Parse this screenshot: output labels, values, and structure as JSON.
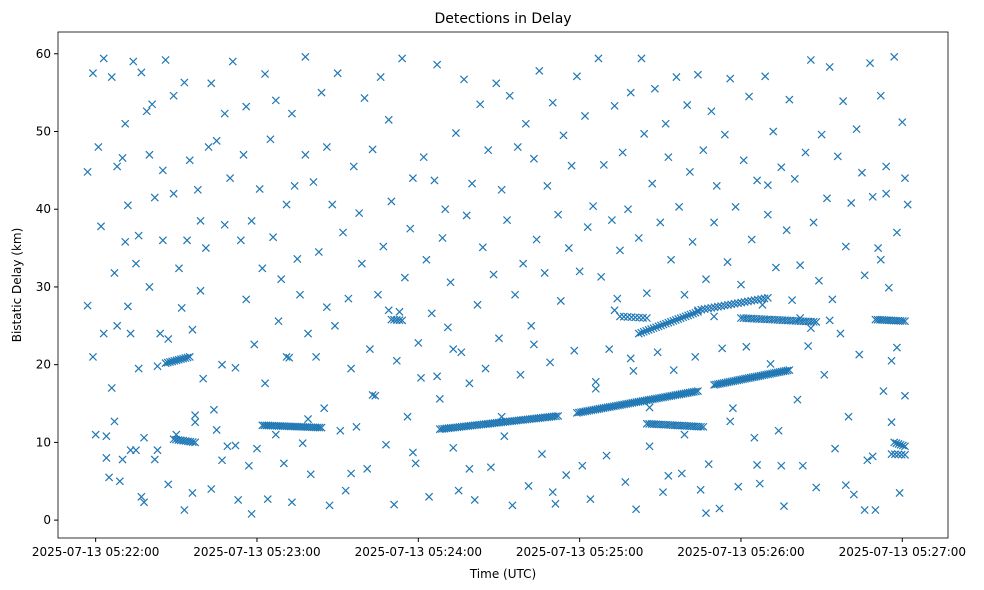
{
  "chart_data": {
    "type": "scatter",
    "title": "Detections in Delay",
    "xlabel": "Time (UTC)",
    "ylabel": "Bistatic Delay (km)",
    "x_units": "seconds after 2025-07-13 05:22:00",
    "xlim": [
      -14,
      317
    ],
    "ylim": [
      -2.3,
      62.8
    ],
    "grid": false,
    "marker": "x",
    "color": "#1f77b4",
    "x_ticks": [
      {
        "value": 0,
        "label": "2025-07-13 05:22:00"
      },
      {
        "value": 60,
        "label": "2025-07-13 05:23:00"
      },
      {
        "value": 120,
        "label": "2025-07-13 05:24:00"
      },
      {
        "value": 180,
        "label": "2025-07-13 05:25:00"
      },
      {
        "value": 240,
        "label": "2025-07-13 05:26:00"
      },
      {
        "value": 300,
        "label": "2025-07-13 05:27:00"
      }
    ],
    "y_ticks": [
      {
        "value": 0,
        "label": "0"
      },
      {
        "value": 10,
        "label": "10"
      },
      {
        "value": 20,
        "label": "20"
      },
      {
        "value": 30,
        "label": "30"
      },
      {
        "value": 40,
        "label": "40"
      },
      {
        "value": 50,
        "label": "50"
      },
      {
        "value": 60,
        "label": "60"
      }
    ],
    "tracks": [
      {
        "t0": 26,
        "t1": 35,
        "d0": 20.2,
        "d1": 21.0,
        "n": 12
      },
      {
        "t0": 29,
        "t1": 37,
        "d0": 10.4,
        "d1": 10.0,
        "n": 10
      },
      {
        "t0": 62,
        "t1": 84,
        "d0": 12.2,
        "d1": 11.9,
        "n": 30
      },
      {
        "t0": 128,
        "t1": 172,
        "d0": 11.7,
        "d1": 13.4,
        "n": 55
      },
      {
        "t0": 179,
        "t1": 224,
        "d0": 13.8,
        "d1": 16.6,
        "n": 60
      },
      {
        "t0": 230,
        "t1": 258,
        "d0": 17.4,
        "d1": 19.3,
        "n": 40
      },
      {
        "t0": 205,
        "t1": 226,
        "d0": 12.4,
        "d1": 12.0,
        "n": 25
      },
      {
        "t0": 202,
        "t1": 224,
        "d0": 24.0,
        "d1": 26.8,
        "n": 25
      },
      {
        "t0": 224,
        "t1": 250,
        "d0": 27.0,
        "d1": 28.6,
        "n": 22
      },
      {
        "t0": 240,
        "t1": 268,
        "d0": 26.0,
        "d1": 25.5,
        "n": 30
      },
      {
        "t0": 290,
        "t1": 301,
        "d0": 25.8,
        "d1": 25.6,
        "n": 14
      },
      {
        "t0": 195,
        "t1": 205,
        "d0": 26.2,
        "d1": 26.0,
        "n": 8
      },
      {
        "t0": 110,
        "t1": 114,
        "d0": 25.8,
        "d1": 25.7,
        "n": 5
      },
      {
        "t0": 297,
        "t1": 301,
        "d0": 10.0,
        "d1": 9.5,
        "n": 6
      },
      {
        "t0": 296,
        "t1": 301,
        "d0": 8.5,
        "d1": 8.4,
        "n": 5
      }
    ],
    "points": [
      [
        -3,
        44.8
      ],
      [
        -3,
        27.6
      ],
      [
        -1,
        21
      ],
      [
        -1,
        57.5
      ],
      [
        0,
        11
      ],
      [
        1,
        48
      ],
      [
        2,
        37.8
      ],
      [
        3,
        59.4
      ],
      [
        3,
        24
      ],
      [
        4,
        8
      ],
      [
        5,
        5.5
      ],
      [
        6,
        17
      ],
      [
        6,
        57
      ],
      [
        7,
        12.7
      ],
      [
        7,
        31.8
      ],
      [
        8,
        45.5
      ],
      [
        8,
        25
      ],
      [
        9,
        5
      ],
      [
        10,
        46.6
      ],
      [
        11,
        51
      ],
      [
        11,
        35.8
      ],
      [
        12,
        40.5
      ],
      [
        12,
        27.5
      ],
      [
        13,
        9
      ],
      [
        13,
        24
      ],
      [
        14,
        59
      ],
      [
        15,
        33
      ],
      [
        16,
        36.6
      ],
      [
        16,
        19.5
      ],
      [
        17,
        3
      ],
      [
        17,
        57.6
      ],
      [
        18,
        2.3
      ],
      [
        18,
        10.6
      ],
      [
        19,
        52.6
      ],
      [
        20,
        47
      ],
      [
        20,
        30
      ],
      [
        21,
        53.5
      ],
      [
        22,
        7.8
      ],
      [
        22,
        41.5
      ],
      [
        23,
        19.8
      ],
      [
        24,
        24
      ],
      [
        25,
        45
      ],
      [
        25,
        36
      ],
      [
        26,
        59.2
      ],
      [
        27,
        23.3
      ],
      [
        27,
        4.6
      ],
      [
        29,
        42
      ],
      [
        29,
        54.6
      ],
      [
        30,
        11
      ],
      [
        31,
        32.4
      ],
      [
        32,
        27.3
      ],
      [
        33,
        56.3
      ],
      [
        33,
        1.3
      ],
      [
        34,
        36
      ],
      [
        35,
        46.3
      ],
      [
        36,
        24.5
      ],
      [
        36,
        3.5
      ],
      [
        37,
        13.5
      ],
      [
        38,
        42.5
      ],
      [
        39,
        29.5
      ],
      [
        39,
        38.5
      ],
      [
        40,
        18.2
      ],
      [
        41,
        35
      ],
      [
        42,
        48
      ],
      [
        43,
        56.2
      ],
      [
        43,
        4
      ],
      [
        45,
        48.8
      ],
      [
        45,
        11.6
      ],
      [
        47,
        20
      ],
      [
        48,
        38
      ],
      [
        48,
        52.3
      ],
      [
        49,
        9.5
      ],
      [
        50,
        44
      ],
      [
        51,
        59
      ],
      [
        52,
        19.6
      ],
      [
        53,
        2.6
      ],
      [
        54,
        36
      ],
      [
        55,
        47
      ],
      [
        56,
        28.4
      ],
      [
        56,
        53.2
      ],
      [
        57,
        7
      ],
      [
        58,
        0.8
      ],
      [
        58,
        38.5
      ],
      [
        59,
        22.6
      ],
      [
        61,
        42.6
      ],
      [
        62,
        32.4
      ],
      [
        63,
        57.4
      ],
      [
        63,
        17.6
      ],
      [
        64,
        2.7
      ],
      [
        65,
        49
      ],
      [
        66,
        36.4
      ],
      [
        67,
        11
      ],
      [
        67,
        54
      ],
      [
        68,
        25.6
      ],
      [
        69,
        31
      ],
      [
        70,
        7.3
      ],
      [
        71,
        40.6
      ],
      [
        72,
        20.9
      ],
      [
        73,
        52.3
      ],
      [
        73,
        2.3
      ],
      [
        74,
        43
      ],
      [
        75,
        33.6
      ],
      [
        76,
        29
      ],
      [
        77,
        9.9
      ],
      [
        78,
        59.6
      ],
      [
        78,
        47
      ],
      [
        79,
        24
      ],
      [
        80,
        5.9
      ],
      [
        81,
        43.5
      ],
      [
        82,
        21
      ],
      [
        83,
        34.5
      ],
      [
        84,
        55
      ],
      [
        85,
        14.4
      ],
      [
        86,
        48
      ],
      [
        87,
        1.9
      ],
      [
        88,
        40.6
      ],
      [
        89,
        25
      ],
      [
        90,
        57.5
      ],
      [
        91,
        11.5
      ],
      [
        92,
        37
      ],
      [
        93,
        3.8
      ],
      [
        94,
        28.5
      ],
      [
        95,
        19.5
      ],
      [
        96,
        45.5
      ],
      [
        97,
        12
      ],
      [
        98,
        39.5
      ],
      [
        99,
        33
      ],
      [
        100,
        54.3
      ],
      [
        101,
        6.6
      ],
      [
        102,
        22
      ],
      [
        103,
        47.7
      ],
      [
        104,
        16
      ],
      [
        105,
        29
      ],
      [
        106,
        57
      ],
      [
        107,
        35.2
      ],
      [
        108,
        9.7
      ],
      [
        109,
        51.5
      ],
      [
        110,
        41
      ],
      [
        111,
        2
      ],
      [
        112,
        20.5
      ],
      [
        113,
        26.8
      ],
      [
        114,
        59.4
      ],
      [
        115,
        31.2
      ],
      [
        116,
        13.3
      ],
      [
        117,
        37.5
      ],
      [
        118,
        44
      ],
      [
        119,
        7.3
      ],
      [
        120,
        22.8
      ],
      [
        121,
        18.3
      ],
      [
        122,
        46.7
      ],
      [
        123,
        33.5
      ],
      [
        124,
        3
      ],
      [
        125,
        26.6
      ],
      [
        126,
        43.7
      ],
      [
        127,
        58.6
      ],
      [
        128,
        15.6
      ],
      [
        129,
        36.3
      ],
      [
        130,
        40
      ],
      [
        131,
        24.8
      ],
      [
        132,
        30.6
      ],
      [
        133,
        9.3
      ],
      [
        134,
        49.8
      ],
      [
        135,
        3.8
      ],
      [
        136,
        21.6
      ],
      [
        137,
        56.7
      ],
      [
        138,
        39.2
      ],
      [
        139,
        17.6
      ],
      [
        140,
        43.3
      ],
      [
        141,
        2.6
      ],
      [
        142,
        27.7
      ],
      [
        143,
        53.5
      ],
      [
        144,
        35.1
      ],
      [
        145,
        19.5
      ],
      [
        146,
        47.6
      ],
      [
        147,
        6.8
      ],
      [
        148,
        31.6
      ],
      [
        149,
        56.2
      ],
      [
        150,
        23.4
      ],
      [
        151,
        42.5
      ],
      [
        152,
        10.8
      ],
      [
        153,
        38.6
      ],
      [
        154,
        54.6
      ],
      [
        155,
        1.9
      ],
      [
        156,
        29
      ],
      [
        157,
        48
      ],
      [
        158,
        18.7
      ],
      [
        159,
        33
      ],
      [
        160,
        51
      ],
      [
        161,
        4.4
      ],
      [
        162,
        25
      ],
      [
        163,
        46.5
      ],
      [
        164,
        36.1
      ],
      [
        165,
        57.8
      ],
      [
        166,
        8.5
      ],
      [
        167,
        31.8
      ],
      [
        168,
        43
      ],
      [
        169,
        20.3
      ],
      [
        170,
        53.7
      ],
      [
        171,
        2.1
      ],
      [
        172,
        39.3
      ],
      [
        173,
        28.2
      ],
      [
        174,
        49.5
      ],
      [
        175,
        5.8
      ],
      [
        176,
        35
      ],
      [
        177,
        45.6
      ],
      [
        178,
        21.8
      ],
      [
        179,
        57.1
      ],
      [
        180,
        32
      ],
      [
        181,
        7
      ],
      [
        182,
        52
      ],
      [
        183,
        37.7
      ],
      [
        184,
        2.7
      ],
      [
        185,
        40.4
      ],
      [
        186,
        17.8
      ],
      [
        187,
        59.4
      ],
      [
        188,
        31.3
      ],
      [
        189,
        45.7
      ],
      [
        190,
        8.3
      ],
      [
        191,
        22
      ],
      [
        192,
        38.6
      ],
      [
        193,
        53.3
      ],
      [
        194,
        28.5
      ],
      [
        195,
        34.7
      ],
      [
        196,
        47.3
      ],
      [
        197,
        4.9
      ],
      [
        198,
        40
      ],
      [
        199,
        55
      ],
      [
        200,
        19.2
      ],
      [
        201,
        1.4
      ],
      [
        202,
        36.3
      ],
      [
        203,
        59.4
      ],
      [
        204,
        49.7
      ],
      [
        205,
        29.2
      ],
      [
        206,
        9.5
      ],
      [
        207,
        43.3
      ],
      [
        208,
        55.5
      ],
      [
        209,
        21.6
      ],
      [
        210,
        38.3
      ],
      [
        211,
        3.6
      ],
      [
        212,
        51
      ],
      [
        213,
        46.7
      ],
      [
        214,
        33.5
      ],
      [
        215,
        19.3
      ],
      [
        216,
        57
      ],
      [
        217,
        40.3
      ],
      [
        218,
        6
      ],
      [
        219,
        29
      ],
      [
        220,
        53.4
      ],
      [
        221,
        44.8
      ],
      [
        222,
        35.8
      ],
      [
        223,
        21
      ],
      [
        224,
        57.3
      ],
      [
        225,
        3.9
      ],
      [
        226,
        47.6
      ],
      [
        227,
        31
      ],
      [
        228,
        7.2
      ],
      [
        229,
        52.6
      ],
      [
        230,
        38.3
      ],
      [
        231,
        43
      ],
      [
        232,
        1.5
      ],
      [
        233,
        22.1
      ],
      [
        234,
        49.6
      ],
      [
        235,
        33.2
      ],
      [
        236,
        56.8
      ],
      [
        237,
        14.4
      ],
      [
        238,
        40.3
      ],
      [
        239,
        4.3
      ],
      [
        240,
        30.3
      ],
      [
        241,
        46.3
      ],
      [
        242,
        22.3
      ],
      [
        243,
        54.5
      ],
      [
        244,
        36.1
      ],
      [
        245,
        10.6
      ],
      [
        246,
        43.7
      ],
      [
        247,
        4.7
      ],
      [
        248,
        27.7
      ],
      [
        249,
        57.1
      ],
      [
        250,
        39.3
      ],
      [
        251,
        20.1
      ],
      [
        252,
        50
      ],
      [
        253,
        32.5
      ],
      [
        254,
        11.5
      ],
      [
        255,
        45.4
      ],
      [
        256,
        1.8
      ],
      [
        257,
        37.3
      ],
      [
        258,
        54.1
      ],
      [
        259,
        28.3
      ],
      [
        260,
        43.9
      ],
      [
        261,
        15.5
      ],
      [
        262,
        32.8
      ],
      [
        263,
        7
      ],
      [
        264,
        47.3
      ],
      [
        265,
        22.4
      ],
      [
        266,
        59.2
      ],
      [
        267,
        38.3
      ],
      [
        268,
        4.2
      ],
      [
        269,
        30.8
      ],
      [
        270,
        49.6
      ],
      [
        271,
        18.7
      ],
      [
        272,
        41.4
      ],
      [
        273,
        58.3
      ],
      [
        274,
        28.4
      ],
      [
        275,
        9.2
      ],
      [
        276,
        46.8
      ],
      [
        277,
        24
      ],
      [
        278,
        53.9
      ],
      [
        279,
        35.2
      ],
      [
        280,
        13.3
      ],
      [
        281,
        40.8
      ],
      [
        282,
        3.3
      ],
      [
        283,
        50.3
      ],
      [
        284,
        21.3
      ],
      [
        285,
        44.7
      ],
      [
        286,
        31.5
      ],
      [
        287,
        7.7
      ],
      [
        288,
        58.8
      ],
      [
        289,
        41.6
      ],
      [
        290,
        1.3
      ],
      [
        291,
        35
      ],
      [
        292,
        54.6
      ],
      [
        293,
        16.6
      ],
      [
        294,
        45.5
      ],
      [
        295,
        29.9
      ],
      [
        296,
        12.6
      ],
      [
        297,
        59.6
      ],
      [
        298,
        37
      ],
      [
        299,
        3.5
      ],
      [
        300,
        51.2
      ],
      [
        301,
        44
      ],
      [
        301,
        16
      ],
      [
        302,
        40.6
      ],
      [
        296,
        20.5
      ],
      [
        298,
        22.2
      ],
      [
        292,
        33.5
      ],
      [
        294,
        42
      ],
      [
        289,
        8.2
      ],
      [
        286,
        1.3
      ],
      [
        279,
        4.5
      ],
      [
        273,
        25.7
      ],
      [
        266,
        24.7
      ],
      [
        262,
        26
      ],
      [
        255,
        7
      ],
      [
        250,
        43.1
      ],
      [
        246,
        7.1
      ],
      [
        236,
        12.7
      ],
      [
        230,
        26.2
      ],
      [
        227,
        0.9
      ],
      [
        219,
        11
      ],
      [
        213,
        5.7
      ],
      [
        206,
        14.5
      ],
      [
        199,
        20.8
      ],
      [
        193,
        27
      ],
      [
        186,
        16.9
      ],
      [
        170,
        3.6
      ],
      [
        163,
        22.6
      ],
      [
        151,
        13.3
      ],
      [
        139,
        6.6
      ],
      [
        133,
        22
      ],
      [
        127,
        18.5
      ],
      [
        118,
        8.7
      ],
      [
        109,
        27
      ],
      [
        103,
        16.1
      ],
      [
        95,
        6
      ],
      [
        86,
        27.4
      ],
      [
        79,
        13
      ],
      [
        71,
        21
      ],
      [
        60,
        9.2
      ],
      [
        52,
        9.6
      ],
      [
        47,
        7.7
      ],
      [
        44,
        14.2
      ],
      [
        37,
        12.6
      ],
      [
        23,
        9
      ],
      [
        15,
        9
      ],
      [
        10,
        7.8
      ],
      [
        4,
        10.8
      ]
    ]
  }
}
